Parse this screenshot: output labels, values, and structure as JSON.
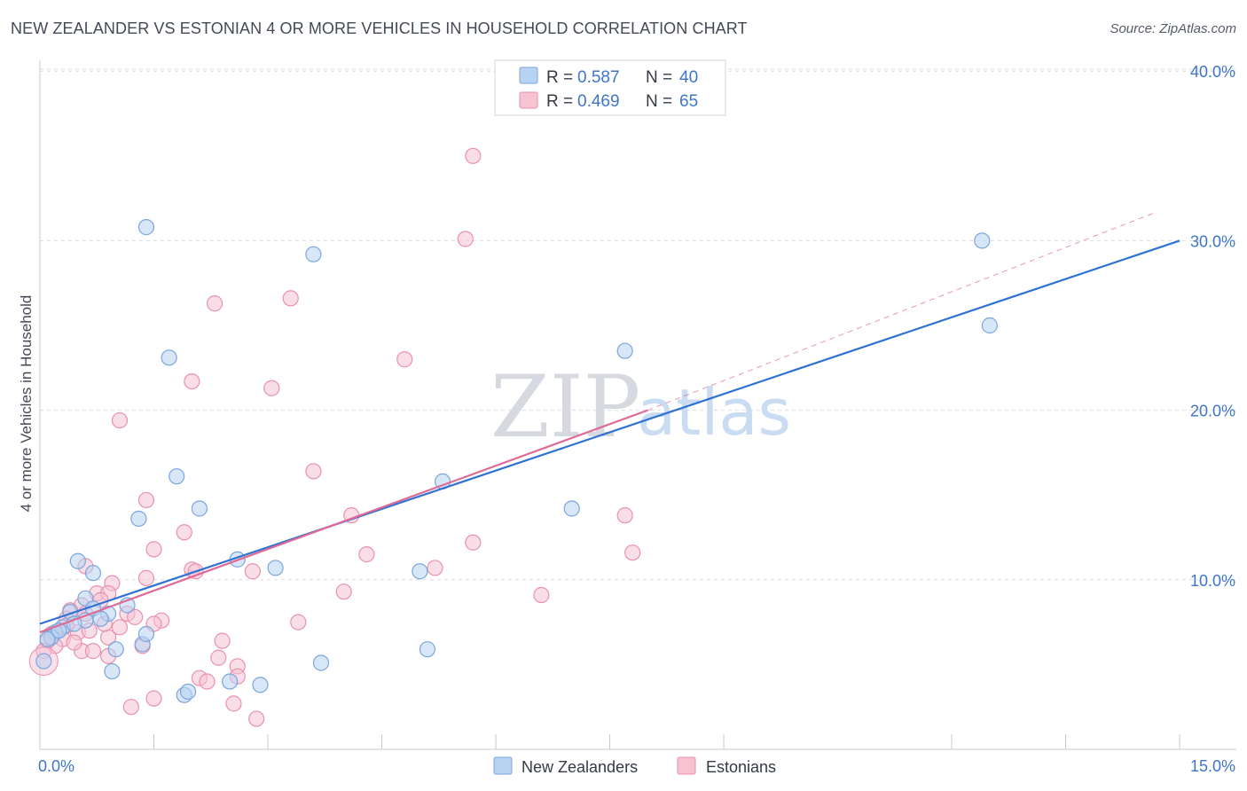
{
  "title": "NEW ZEALANDER VS ESTONIAN 4 OR MORE VEHICLES IN HOUSEHOLD CORRELATION CHART",
  "source": "Source: ZipAtlas.com",
  "watermark": {
    "zip": "ZIP",
    "atlas": "atlas"
  },
  "colors": {
    "blue_fill": "#b8d3f2",
    "blue_stroke": "#7aa6dd",
    "blue_line": "#2e72d2",
    "pink_fill": "#f6c3d3",
    "pink_stroke": "#e991ad",
    "pink_line": "#e06a97",
    "grid": "#dddddd",
    "axis_text": "#3d76c9"
  },
  "legend_top": {
    "rows": [
      {
        "r_label": "R =",
        "r_value": "0.587",
        "n_label": "N =",
        "n_value": "40",
        "series": "blue"
      },
      {
        "r_label": "R =",
        "r_value": "0.469",
        "n_label": "N =",
        "n_value": "65",
        "series": "pink"
      }
    ]
  },
  "legend_bottom": {
    "items": [
      {
        "label": "New Zealanders",
        "series": "blue"
      },
      {
        "label": "Estonians",
        "series": "pink"
      }
    ]
  },
  "chart_data": {
    "type": "scatter",
    "title": "NEW ZEALANDER VS ESTONIAN 4 OR MORE VEHICLES IN HOUSEHOLD CORRELATION CHART",
    "xlabel": "",
    "ylabel": "4 or more Vehicles in Household",
    "xlim": [
      0,
      15
    ],
    "ylim": [
      0,
      41.5
    ],
    "x_tick_labels": [
      {
        "value": 0,
        "label": "0.0%"
      },
      {
        "value": 15,
        "label": "15.0%"
      }
    ],
    "y_tick_labels": [
      {
        "value": 10,
        "label": "10.0%"
      },
      {
        "value": 20,
        "label": "20.0%"
      },
      {
        "value": 30,
        "label": "30.0%"
      },
      {
        "value": 40,
        "label": "40.0%"
      }
    ],
    "x_minor_ticks": [
      1.5,
      3,
      4.5,
      6,
      7.5,
      9,
      12,
      13.5,
      15
    ],
    "series": [
      {
        "name": "New Zealanders",
        "color": "blue",
        "r": 0.587,
        "n": 40,
        "trend": {
          "x0": 0,
          "y0": 7.4,
          "x1": 15,
          "y1": 30.0
        },
        "points": [
          [
            1.4,
            30.8
          ],
          [
            3.6,
            29.2
          ],
          [
            12.4,
            30.0
          ],
          [
            12.5,
            25.0
          ],
          [
            1.7,
            23.1
          ],
          [
            7.7,
            23.5
          ],
          [
            1.8,
            16.1
          ],
          [
            5.3,
            15.8
          ],
          [
            2.1,
            14.2
          ],
          [
            1.3,
            13.6
          ],
          [
            7.0,
            14.2
          ],
          [
            2.6,
            11.2
          ],
          [
            3.1,
            10.7
          ],
          [
            0.5,
            11.1
          ],
          [
            0.7,
            10.4
          ],
          [
            5.0,
            10.5
          ],
          [
            0.6,
            8.9
          ],
          [
            0.7,
            8.3
          ],
          [
            0.9,
            8.0
          ],
          [
            0.4,
            8.1
          ],
          [
            0.6,
            7.6
          ],
          [
            0.8,
            7.7
          ],
          [
            1.15,
            8.5
          ],
          [
            0.3,
            7.2
          ],
          [
            0.45,
            7.4
          ],
          [
            0.2,
            6.9
          ],
          [
            0.15,
            6.6
          ],
          [
            1.35,
            6.2
          ],
          [
            1.4,
            6.8
          ],
          [
            1.0,
            5.9
          ],
          [
            0.95,
            4.6
          ],
          [
            3.7,
            5.1
          ],
          [
            5.1,
            5.9
          ],
          [
            2.5,
            4.0
          ],
          [
            2.9,
            3.8
          ],
          [
            1.9,
            3.2
          ],
          [
            1.95,
            3.4
          ],
          [
            0.05,
            5.2
          ],
          [
            0.1,
            6.5
          ],
          [
            0.25,
            7.0
          ]
        ]
      },
      {
        "name": "Estonians",
        "color": "pink",
        "r": 0.469,
        "n": 65,
        "trend": {
          "x0": 0,
          "y0": 6.9,
          "x1": 8.0,
          "y1": 20.0
        },
        "trend_dashed": {
          "x0": 8.0,
          "y0": 20.0,
          "x1": 14.7,
          "y1": 31.7
        },
        "points": [
          [
            5.7,
            35.0
          ],
          [
            5.6,
            30.1
          ],
          [
            3.3,
            26.6
          ],
          [
            2.3,
            26.3
          ],
          [
            4.8,
            23.0
          ],
          [
            2.0,
            21.7
          ],
          [
            3.05,
            21.3
          ],
          [
            1.05,
            19.4
          ],
          [
            3.6,
            16.4
          ],
          [
            1.4,
            14.7
          ],
          [
            4.1,
            13.8
          ],
          [
            7.7,
            13.8
          ],
          [
            1.9,
            12.8
          ],
          [
            5.7,
            12.2
          ],
          [
            1.5,
            11.8
          ],
          [
            4.3,
            11.5
          ],
          [
            7.8,
            11.6
          ],
          [
            2.0,
            10.6
          ],
          [
            2.05,
            10.5
          ],
          [
            2.8,
            10.5
          ],
          [
            5.2,
            10.7
          ],
          [
            0.6,
            10.8
          ],
          [
            1.4,
            10.1
          ],
          [
            6.6,
            9.1
          ],
          [
            4.0,
            9.3
          ],
          [
            0.95,
            9.8
          ],
          [
            0.75,
            9.2
          ],
          [
            0.9,
            9.2
          ],
          [
            0.8,
            8.8
          ],
          [
            0.4,
            8.2
          ],
          [
            1.15,
            8.0
          ],
          [
            0.55,
            8.5
          ],
          [
            0.35,
            7.7
          ],
          [
            1.6,
            7.6
          ],
          [
            1.5,
            7.4
          ],
          [
            3.4,
            7.5
          ],
          [
            1.05,
            7.2
          ],
          [
            0.5,
            6.9
          ],
          [
            0.9,
            6.6
          ],
          [
            0.3,
            6.5
          ],
          [
            0.2,
            6.1
          ],
          [
            1.35,
            6.1
          ],
          [
            0.55,
            5.8
          ],
          [
            0.7,
            5.8
          ],
          [
            0.9,
            5.5
          ],
          [
            2.4,
            6.4
          ],
          [
            2.35,
            5.4
          ],
          [
            2.6,
            4.9
          ],
          [
            2.1,
            4.2
          ],
          [
            2.2,
            4.0
          ],
          [
            2.6,
            4.3
          ],
          [
            1.5,
            3.0
          ],
          [
            2.55,
            2.7
          ],
          [
            1.2,
            2.5
          ],
          [
            2.85,
            1.8
          ],
          [
            0.15,
            6.8
          ],
          [
            0.25,
            7.0
          ],
          [
            0.1,
            6.4
          ],
          [
            0.45,
            6.3
          ],
          [
            0.65,
            7.0
          ],
          [
            1.25,
            7.8
          ],
          [
            0.35,
            7.3
          ],
          [
            0.05,
            5.8
          ],
          [
            0.6,
            8.0
          ],
          [
            0.85,
            7.4
          ]
        ]
      }
    ]
  }
}
